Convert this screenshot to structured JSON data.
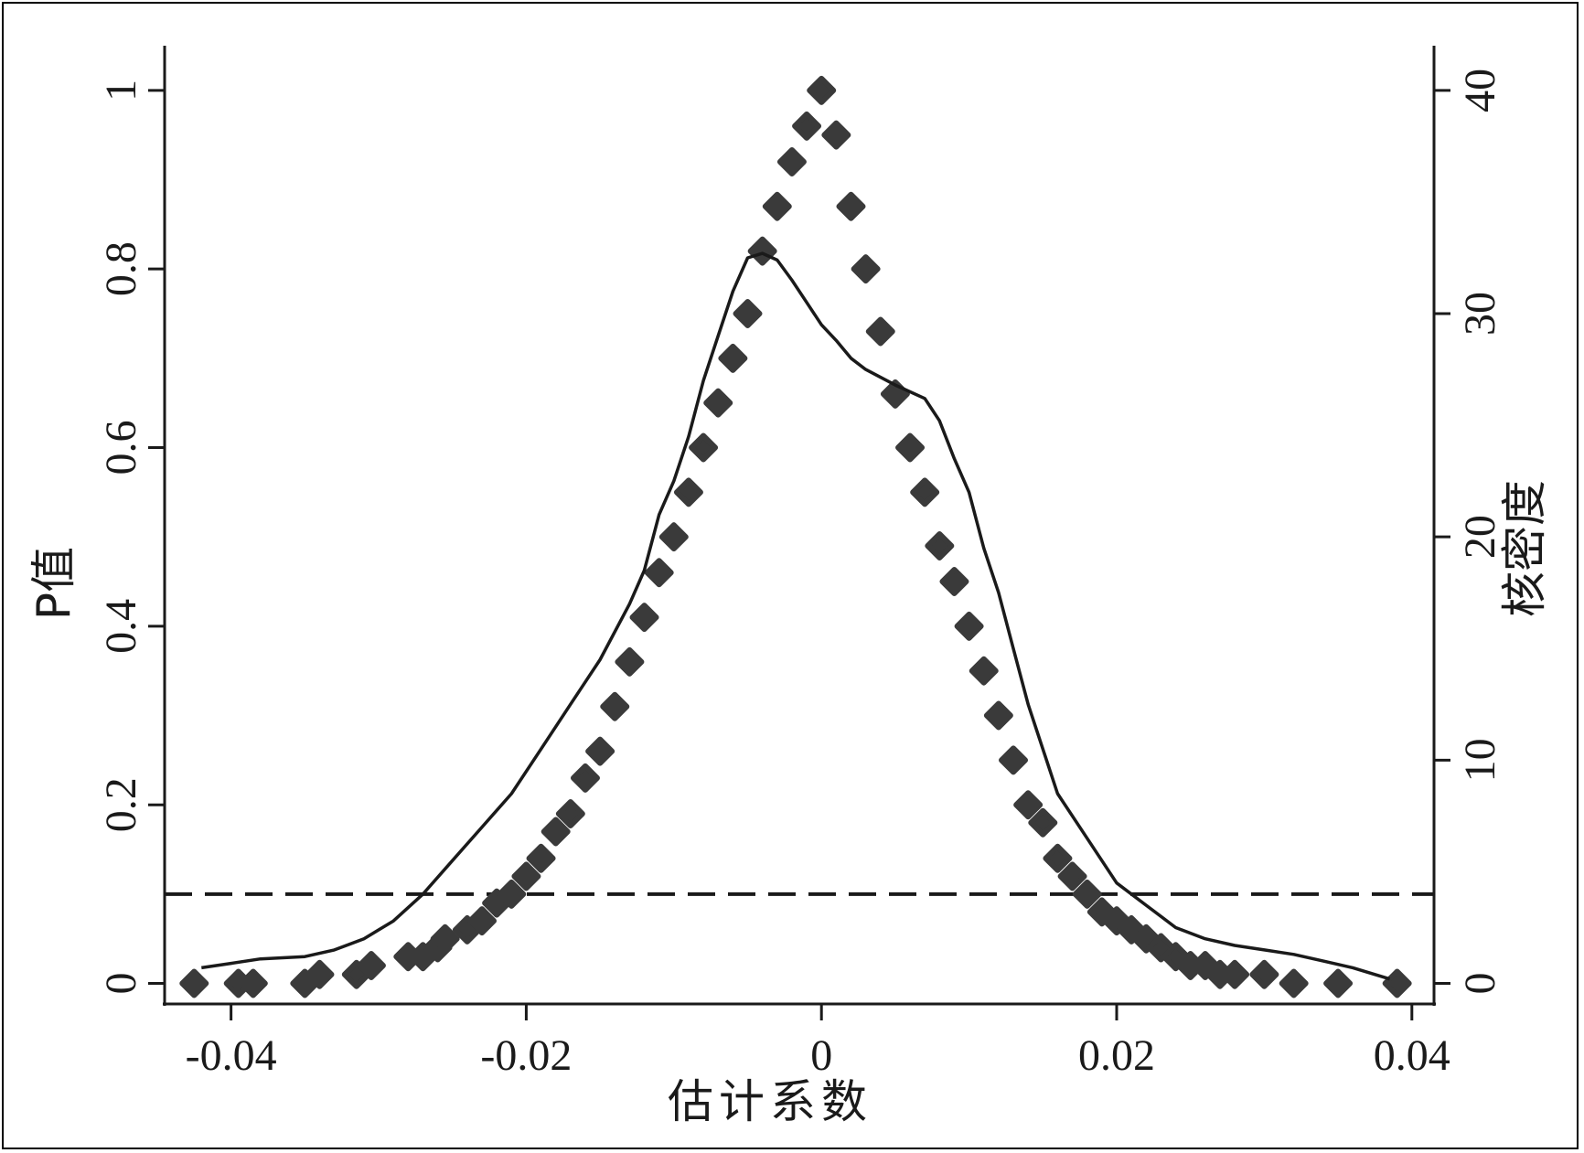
{
  "chart_data": {
    "type": "scatter",
    "xlabel": "估计系数",
    "ylabel_left": "P值",
    "ylabel_right": "核密度",
    "x_ticks": [
      "-0.04",
      "-0.02",
      "0",
      "0.02",
      "0.04"
    ],
    "y_left_ticks": [
      "0",
      "0.2",
      "0.4",
      "0.6",
      "0.8",
      "1"
    ],
    "y_right_ticks": [
      "0",
      "10",
      "20",
      "30",
      "40"
    ],
    "xlim": [
      -0.0445,
      0.0415
    ],
    "ylim_left": [
      -0.023,
      1.05
    ],
    "ylim_right": [
      -0.92,
      42.0
    ],
    "reference_line": {
      "y": 0.1,
      "style": "dashed"
    },
    "series": [
      {
        "kind": "points",
        "axis": "left",
        "marker": "filled-diamond",
        "color": "#3a3a3a",
        "x": [
          -0.0425,
          -0.0395,
          -0.0385,
          -0.035,
          -0.034,
          -0.0315,
          -0.0305,
          -0.028,
          -0.027,
          -0.026,
          -0.0255,
          -0.024,
          -0.023,
          -0.022,
          -0.021,
          -0.02,
          -0.019,
          -0.018,
          -0.017,
          -0.016,
          -0.015,
          -0.014,
          -0.013,
          -0.012,
          -0.011,
          -0.01,
          -0.009,
          -0.008,
          -0.007,
          -0.006,
          -0.005,
          -0.004,
          -0.003,
          -0.002,
          -0.001,
          0.0,
          0.001,
          0.002,
          0.003,
          0.004,
          0.005,
          0.006,
          0.007,
          0.008,
          0.009,
          0.01,
          0.011,
          0.012,
          0.013,
          0.014,
          0.015,
          0.016,
          0.017,
          0.018,
          0.019,
          0.02,
          0.021,
          0.022,
          0.023,
          0.024,
          0.025,
          0.026,
          0.027,
          0.028,
          0.03,
          0.032,
          0.035,
          0.039
        ],
        "y": [
          0.0,
          0.0,
          0.0,
          0.0,
          0.01,
          0.01,
          0.02,
          0.03,
          0.03,
          0.04,
          0.05,
          0.06,
          0.07,
          0.09,
          0.1,
          0.12,
          0.14,
          0.17,
          0.19,
          0.23,
          0.26,
          0.31,
          0.36,
          0.41,
          0.46,
          0.5,
          0.55,
          0.6,
          0.65,
          0.7,
          0.75,
          0.82,
          0.87,
          0.92,
          0.96,
          1.0,
          0.95,
          0.87,
          0.8,
          0.73,
          0.66,
          0.6,
          0.55,
          0.49,
          0.45,
          0.4,
          0.35,
          0.3,
          0.25,
          0.2,
          0.18,
          0.14,
          0.12,
          0.1,
          0.08,
          0.07,
          0.06,
          0.05,
          0.04,
          0.03,
          0.02,
          0.02,
          0.01,
          0.01,
          0.01,
          0.0,
          0.0,
          0.0
        ]
      },
      {
        "kind": "line",
        "axis": "right",
        "color": "#1a1a1a",
        "x": [
          -0.042,
          -0.04,
          -0.038,
          -0.035,
          -0.033,
          -0.031,
          -0.029,
          -0.027,
          -0.025,
          -0.023,
          -0.021,
          -0.019,
          -0.017,
          -0.015,
          -0.013,
          -0.012,
          -0.011,
          -0.01,
          -0.009,
          -0.008,
          -0.007,
          -0.006,
          -0.005,
          -0.004,
          -0.003,
          -0.002,
          -0.001,
          0.0,
          0.001,
          0.002,
          0.003,
          0.005,
          0.007,
          0.008,
          0.009,
          0.01,
          0.011,
          0.012,
          0.013,
          0.014,
          0.015,
          0.016,
          0.018,
          0.02,
          0.022,
          0.024,
          0.026,
          0.028,
          0.03,
          0.032,
          0.034,
          0.036,
          0.0385
        ],
        "y": [
          0.7,
          0.9,
          1.1,
          1.2,
          1.5,
          2.0,
          2.8,
          4.0,
          5.5,
          7.0,
          8.5,
          10.5,
          12.5,
          14.5,
          17.0,
          18.5,
          21.0,
          22.5,
          24.5,
          27.0,
          29.0,
          31.0,
          32.5,
          32.7,
          32.4,
          31.5,
          30.5,
          29.5,
          28.8,
          28.0,
          27.5,
          26.8,
          26.2,
          25.2,
          23.5,
          22.0,
          19.5,
          17.5,
          15.0,
          12.5,
          10.5,
          8.5,
          6.5,
          4.5,
          3.5,
          2.5,
          2.0,
          1.7,
          1.5,
          1.3,
          1.0,
          0.7,
          0.2
        ]
      }
    ]
  }
}
